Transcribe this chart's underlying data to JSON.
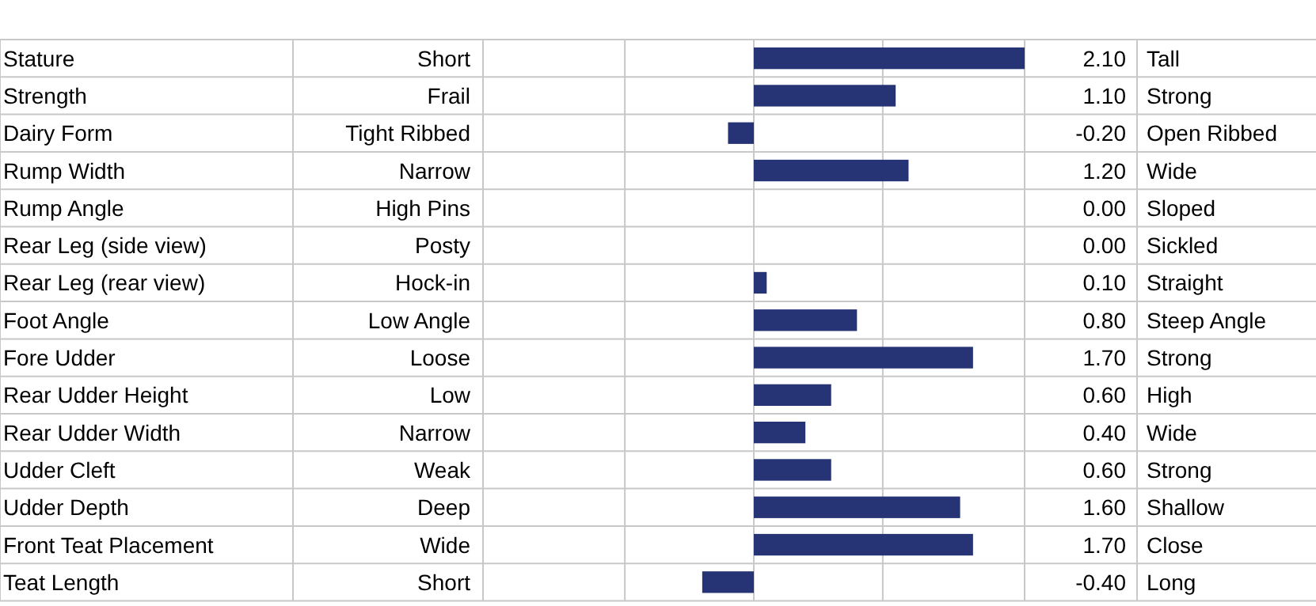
{
  "chart_data": {
    "type": "bar",
    "orientation": "horizontal",
    "categories": [
      "Stature",
      "Strength",
      "Dairy Form",
      "Rump Width",
      "Rump Angle",
      "Rear Leg (side view)",
      "Rear Leg (rear view)",
      "Foot Angle",
      "Fore Udder",
      "Rear Udder Height",
      "Rear Udder Width",
      "Udder Cleft",
      "Udder Depth",
      "Front Teat Placement",
      "Teat Length"
    ],
    "values": [
      2.1,
      1.1,
      -0.2,
      1.2,
      0,
      0,
      0.1,
      0.8,
      1.7,
      0.6,
      0.4,
      0.6,
      1.6,
      1.7,
      -0.4
    ],
    "value_labels": [
      "2.10",
      "1.10",
      "-0.20",
      "1.20",
      "0.00",
      "0.00",
      "0.10",
      "0.80",
      "1.70",
      "0.60",
      "0.40",
      "0.60",
      "1.60",
      "1.70",
      "-0.40"
    ],
    "color": "#263476",
    "xlim": [
      -2.1,
      2.1
    ],
    "xticks": [
      {
        "value": -1,
        "label": null
      },
      {
        "value": 0,
        "label": null
      },
      {
        "value": 1,
        "label": null
      }
    ],
    "grid": "x",
    "tick_labels": "y",
    "annotations": [
      "Short",
      "Frail",
      "Tight Ribbed",
      "Narrow",
      "High Pins",
      "Posty",
      "Hock-in",
      "Low Angle",
      "Loose",
      "Low",
      "Narrow",
      "Weak",
      "Deep",
      "Wide",
      "Short",
      "Tall",
      "Strong",
      "Open Ribbed",
      "Wide",
      "Sloped",
      "Sickled",
      "Straight",
      "Steep Angle",
      "Strong",
      "High",
      "Wide",
      "Strong",
      "Shallow",
      "Close",
      "Long"
    ]
  }
}
